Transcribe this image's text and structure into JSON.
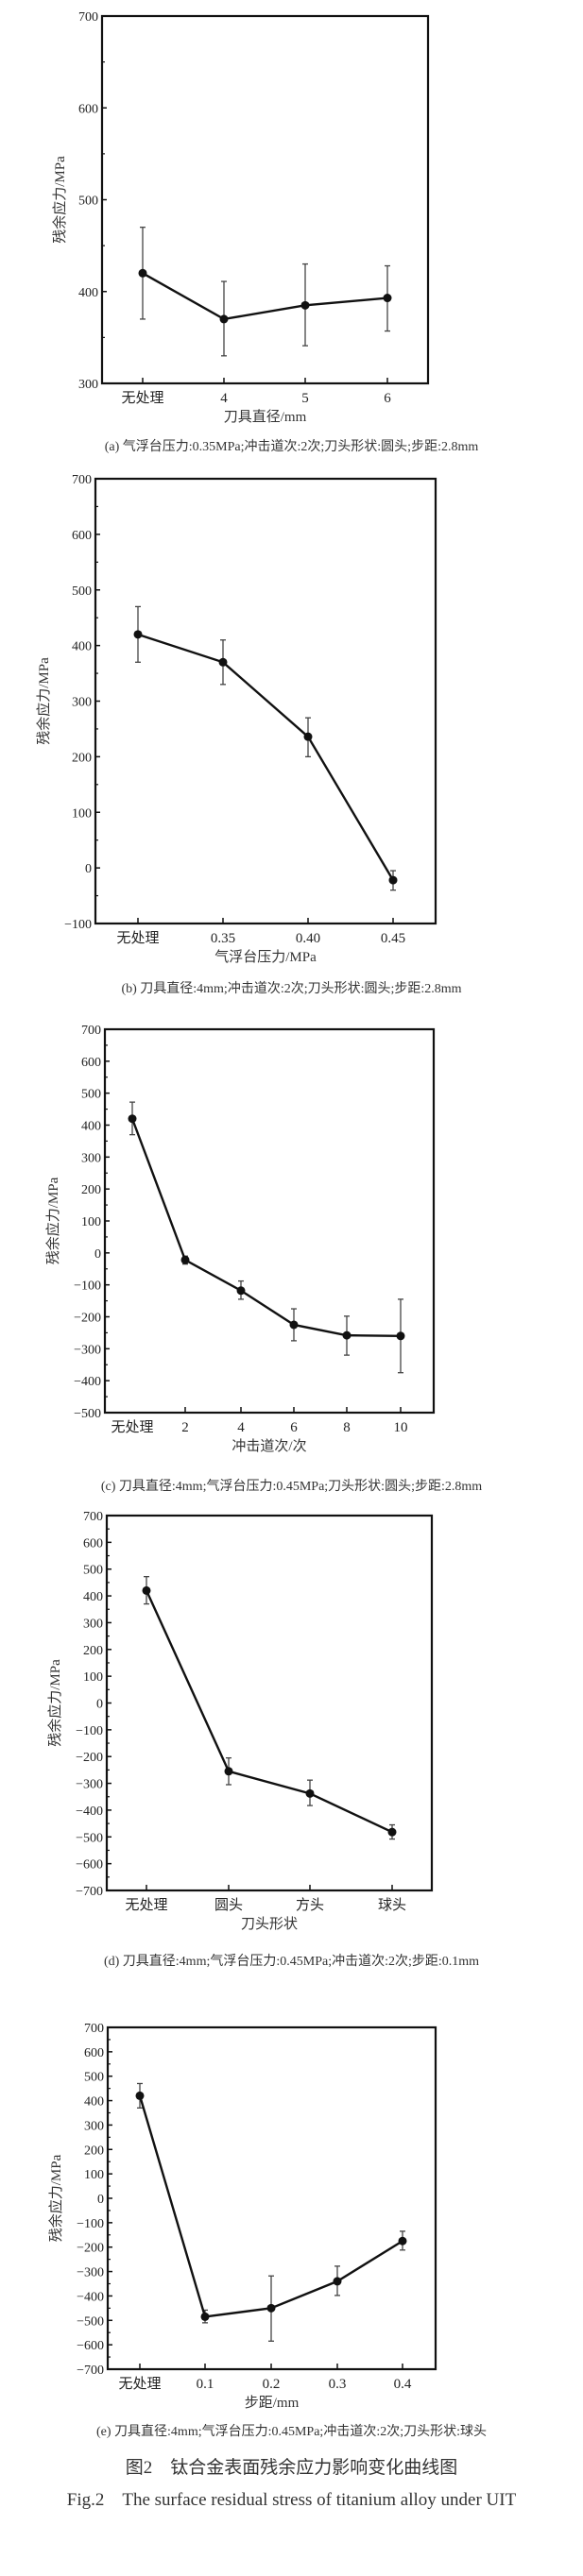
{
  "chart_data": [
    {
      "type": "line",
      "ylabel": "残余应力/MPa",
      "xlabel": "刀具直径/mm",
      "categories": [
        "无处理",
        "4",
        "5",
        "6"
      ],
      "values": [
        420,
        370,
        385,
        393
      ],
      "error_low": [
        370,
        330,
        341,
        357
      ],
      "error_high": [
        470,
        411,
        430,
        428
      ],
      "ylim": [
        300,
        700
      ],
      "yticks": [
        300,
        400,
        500,
        600,
        700
      ],
      "caption": "(a) 气浮台压力:0.35MPa;冲击道次:2次;刀头形状:圆头;步距:2.8mm"
    },
    {
      "type": "line",
      "ylabel": "残余应力/MPa",
      "xlabel": "气浮台压力/MPa",
      "categories": [
        "无处理",
        "0.35",
        "0.40",
        "0.45"
      ],
      "values": [
        420,
        370,
        236,
        -22
      ],
      "error_low": [
        370,
        330,
        200,
        -40
      ],
      "error_high": [
        470,
        410,
        270,
        -5
      ],
      "ylim": [
        -100,
        700
      ],
      "yticks": [
        -100,
        0,
        100,
        200,
        300,
        400,
        500,
        600,
        700
      ],
      "caption": "(b) 刀具直径:4mm;冲击道次:2次;刀头形状:圆头;步距:2.8mm"
    },
    {
      "type": "line",
      "ylabel": "残余应力/MPa",
      "xlabel": "冲击道次/次",
      "categories": [
        "无处理",
        "2",
        "4",
        "6",
        "8",
        "10"
      ],
      "values": [
        420,
        -22,
        -118,
        -225,
        -258,
        -260
      ],
      "error_low": [
        370,
        -35,
        -145,
        -275,
        -320,
        -375
      ],
      "error_high": [
        472,
        -10,
        -88,
        -175,
        -198,
        -145
      ],
      "ylim": [
        -500,
        700
      ],
      "yticks": [
        -500,
        -400,
        -300,
        -200,
        -100,
        0,
        100,
        200,
        300,
        400,
        500,
        600,
        700
      ],
      "caption": "(c) 刀具直径:4mm;气浮台压力:0.45MPa;刀头形状:圆头;步距:2.8mm"
    },
    {
      "type": "line",
      "ylabel": "残余应力/MPa",
      "xlabel": "刀头形状",
      "categories": [
        "无处理",
        "圆头",
        "方头",
        "球头"
      ],
      "values": [
        420,
        -255,
        -338,
        -482
      ],
      "error_low": [
        370,
        -305,
        -383,
        -508
      ],
      "error_high": [
        472,
        -205,
        -288,
        -455
      ],
      "ylim": [
        -700,
        700
      ],
      "yticks": [
        -700,
        -600,
        -500,
        -400,
        -300,
        -200,
        -100,
        0,
        100,
        200,
        300,
        400,
        500,
        600,
        700
      ],
      "caption": "(d) 刀具直径:4mm;气浮台压力:0.45MPa;冲击道次:2次;步距:0.1mm"
    },
    {
      "type": "line",
      "ylabel": "残余应力/MPa",
      "xlabel": "步距/mm",
      "categories": [
        "无处理",
        "0.1",
        "0.2",
        "0.3",
        "0.4"
      ],
      "values": [
        420,
        -485,
        -450,
        -340,
        -175
      ],
      "error_low": [
        370,
        -510,
        -585,
        -398,
        -212
      ],
      "error_high": [
        470,
        -458,
        -318,
        -278,
        -135
      ],
      "ylim": [
        -700,
        700
      ],
      "yticks": [
        -700,
        -600,
        -500,
        -400,
        -300,
        -200,
        -100,
        0,
        100,
        200,
        300,
        400,
        500,
        600,
        700
      ],
      "caption": "(e) 刀具直径:4mm;气浮台压力:0.45MPa;冲击道次:2次;刀头形状:球头"
    }
  ],
  "figure": {
    "title_cn": "图2　钛合金表面残余应力影响变化曲线图",
    "title_en": "Fig.2　The surface residual stress of titanium alloy under UIT"
  }
}
